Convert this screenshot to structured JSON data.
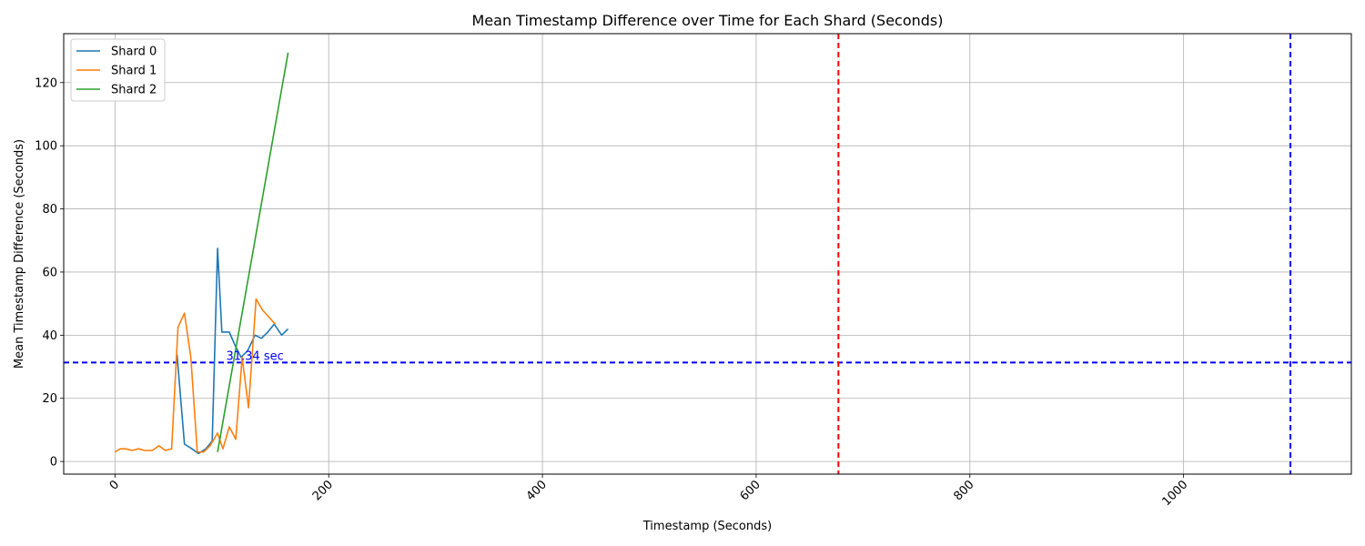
{
  "chart_data": {
    "type": "line",
    "title": "Mean Timestamp Difference over Time for Each Shard (Seconds)",
    "xlabel": "Timestamp (Seconds)",
    "ylabel": "Mean Timestamp Difference (Seconds)",
    "xlim": [
      -48,
      1157
    ],
    "ylim": [
      -4,
      135.5
    ],
    "xticks": [
      0,
      200,
      400,
      600,
      800,
      1000
    ],
    "xtick_labels": [
      "0",
      "200",
      "400",
      "600",
      "800",
      "1000"
    ],
    "yticks": [
      0,
      20,
      40,
      60,
      80,
      100,
      120
    ],
    "ytick_labels": [
      "0",
      "20",
      "40",
      "60",
      "80",
      "100",
      "120"
    ],
    "grid": true,
    "legend_position": "top-left",
    "series": [
      {
        "name": "Shard 0",
        "color": "#1f77b4",
        "points": [
          [
            58,
            34
          ],
          [
            65,
            5.5
          ],
          [
            72,
            4
          ],
          [
            78,
            2.5
          ],
          [
            85,
            4
          ],
          [
            91,
            6.5
          ],
          [
            96,
            67.5
          ],
          [
            100,
            41
          ],
          [
            107,
            41
          ],
          [
            112,
            37
          ],
          [
            118,
            33
          ],
          [
            124,
            35
          ],
          [
            131,
            40
          ],
          [
            137,
            39
          ],
          [
            143,
            41
          ],
          [
            149,
            43.5
          ],
          [
            156,
            40
          ],
          [
            162,
            42
          ]
        ]
      },
      {
        "name": "Shard 1",
        "color": "#ff7f0e",
        "points": [
          [
            0,
            3
          ],
          [
            5,
            4
          ],
          [
            10,
            4
          ],
          [
            16,
            3.5
          ],
          [
            22,
            4
          ],
          [
            28,
            3.5
          ],
          [
            35,
            3.5
          ],
          [
            41,
            5
          ],
          [
            47,
            3.5
          ],
          [
            53,
            4
          ],
          [
            59,
            42.5
          ],
          [
            65,
            47
          ],
          [
            71,
            33
          ],
          [
            77,
            3
          ],
          [
            83,
            3
          ],
          [
            89,
            5
          ],
          [
            96,
            9
          ],
          [
            101,
            4
          ],
          [
            107,
            11
          ],
          [
            113,
            7
          ],
          [
            119,
            33
          ],
          [
            125,
            17
          ],
          [
            132,
            51.5
          ],
          [
            138,
            48
          ],
          [
            150,
            43.5
          ]
        ]
      },
      {
        "name": "Shard 2",
        "color": "#2ca02c",
        "points": [
          [
            96,
            3
          ],
          [
            162,
            129.5
          ]
        ]
      }
    ],
    "reference_lines": [
      {
        "orientation": "horizontal",
        "value": 31.34,
        "color": "#0000ff",
        "style": "dashed"
      },
      {
        "orientation": "vertical",
        "value": 677,
        "color": "#ff0000",
        "style": "dashed"
      },
      {
        "orientation": "vertical",
        "value": 1100,
        "color": "#0000ff",
        "style": "dashed"
      }
    ],
    "annotations": [
      {
        "text": "31.34 sec",
        "x": 104,
        "y": 31.34,
        "color": "#0000ff"
      }
    ]
  }
}
